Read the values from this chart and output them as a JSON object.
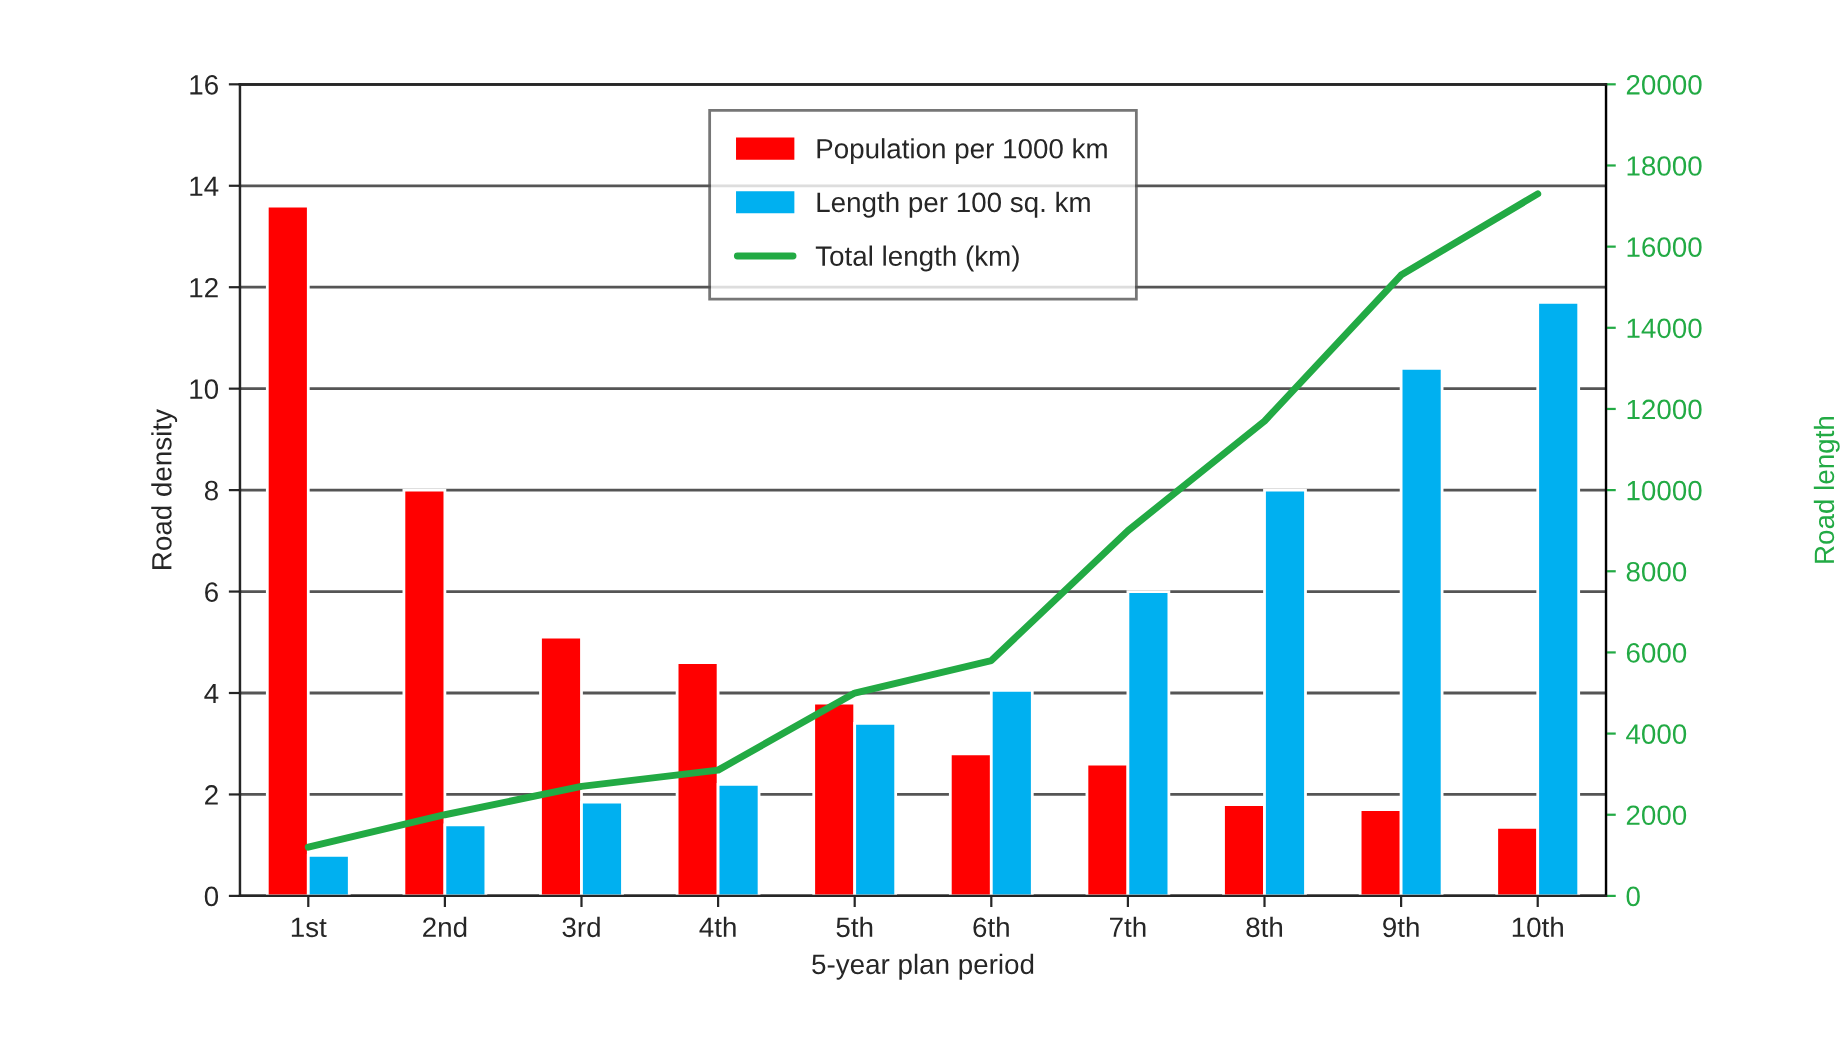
{
  "chart_data": {
    "type": "bar",
    "xlabel": "5-year plan period",
    "ylabel": "Road density",
    "y2label": "Road length",
    "categories": [
      "1st",
      "2nd",
      "3rd",
      "4th",
      "5th",
      "6th",
      "7th",
      "8th",
      "9th",
      "10th"
    ],
    "series": [
      {
        "name": "Population per 1000 km",
        "color": "#ff0000",
        "values": [
          13.6,
          8.0,
          5.1,
          4.6,
          3.8,
          2.8,
          2.6,
          1.8,
          1.7,
          1.35
        ]
      },
      {
        "name": "Length per 100 sq. km",
        "color": "#00b0f0",
        "values": [
          0.8,
          1.4,
          1.85,
          2.2,
          3.4,
          4.05,
          6.0,
          8.0,
          10.4,
          11.7
        ]
      },
      {
        "name": "Total length (km)",
        "color": "#22aa44",
        "type": "line",
        "axis": "y2",
        "values": [
          1200,
          2000,
          2700,
          3100,
          5000,
          5800,
          9000,
          11700,
          15300,
          17300
        ]
      }
    ],
    "ylim": [
      0,
      16
    ],
    "yticks": [
      0,
      2,
      4,
      6,
      8,
      10,
      12,
      14,
      16
    ],
    "y2lim": [
      0,
      20000
    ],
    "y2ticks": [
      0,
      2000,
      4000,
      6000,
      8000,
      10000,
      12000,
      14000,
      16000,
      18000,
      20000
    ],
    "grid": "y",
    "legend": "top"
  }
}
